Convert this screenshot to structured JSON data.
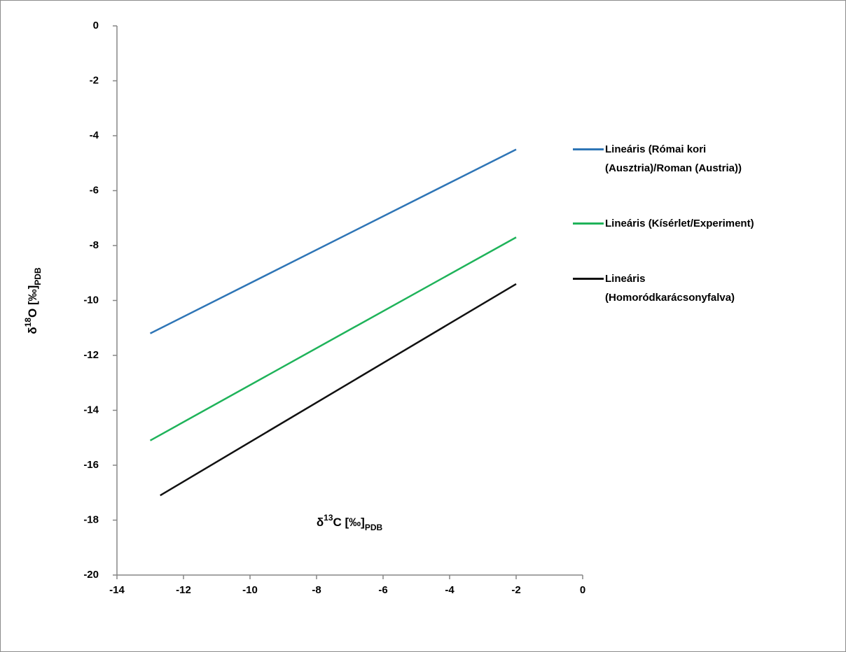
{
  "chart_data": {
    "type": "line",
    "x_label": [
      "δ",
      "13",
      "C [‰]",
      "PDB"
    ],
    "y_label": [
      "δ",
      "18",
      "O [‰]",
      "PDB"
    ],
    "series": [
      {
        "name": "Lineáris (Római kori (Ausztria)/Roman (Austria))",
        "color": "#2e75b6",
        "x": [
          -13,
          -2
        ],
        "values": [
          -11.2,
          -4.5
        ]
      },
      {
        "name": "Lineáris (Kísérlet/Experiment)",
        "color": "#1fb35a",
        "x": [
          -13,
          -2
        ],
        "values": [
          -15.1,
          -7.7
        ]
      },
      {
        "name": "Lineáris (Homoródkarácsonyfalva)",
        "color": "#111111",
        "x": [
          -12.7,
          -2
        ],
        "values": [
          -17.1,
          -9.4
        ]
      }
    ],
    "xlim": [
      -14,
      0
    ],
    "xticks": [
      -14,
      -12,
      -10,
      -8,
      -6,
      -4,
      -2,
      0
    ],
    "ylim": [
      -20,
      0
    ],
    "yticks": [
      -20,
      -18,
      -16,
      -14,
      -12,
      -10,
      -8,
      -6,
      -4,
      -2,
      0
    ],
    "grid": false,
    "legend": "right"
  }
}
